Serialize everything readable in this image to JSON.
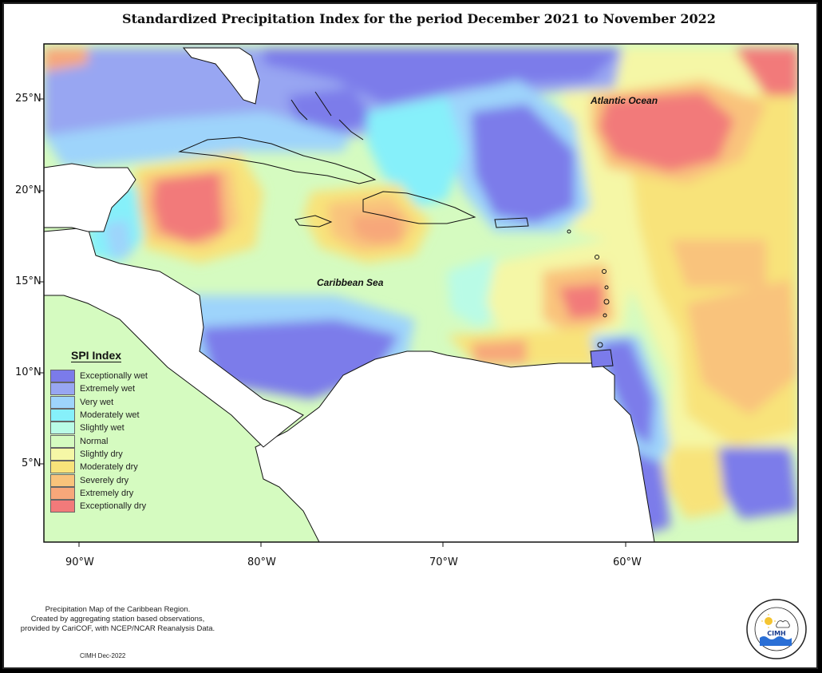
{
  "title": "Standardized Precipitation Index for the period December 2021 to November 2022",
  "map": {
    "region": "Caribbean",
    "lon_range": [
      -92,
      -50
    ],
    "lat_range": [
      1,
      28
    ],
    "x_ticks": [
      "90°W",
      "80°W",
      "70°W",
      "60°W"
    ],
    "y_ticks": [
      "25°N",
      "20°N",
      "15°N",
      "10°N",
      "5°N"
    ],
    "labels": {
      "atlantic": "Atlantic Ocean",
      "caribbean": "Caribbean Sea"
    }
  },
  "legend": {
    "title": "SPI Index",
    "items": [
      {
        "label": "Exceptionally wet",
        "color": "#7b7bea"
      },
      {
        "label": "Extremely wet",
        "color": "#98a6f2"
      },
      {
        "label": "Very wet",
        "color": "#9ed4fb"
      },
      {
        "label": "Moderately wet",
        "color": "#86f0fa"
      },
      {
        "label": "Slightly wet",
        "color": "#b9fbe6"
      },
      {
        "label": "Normal",
        "color": "#d5fbc0"
      },
      {
        "label": "Slightly dry",
        "color": "#f5f7a6"
      },
      {
        "label": "Moderately dry",
        "color": "#f8e37a"
      },
      {
        "label": "Severely dry",
        "color": "#f9c37b"
      },
      {
        "label": "Extremely dry",
        "color": "#f7a77a"
      },
      {
        "label": "Exceptionally dry",
        "color": "#f27a7a"
      }
    ]
  },
  "notes": {
    "line1": "Precipitation Map of the Caribbean Region.",
    "line2": "Created by aggregating station based observations,",
    "line3": "provided by CariCOF, with NCEP/NCAR Reanalysis Data."
  },
  "credit": "CIMH Dec-2022",
  "logo": {
    "text": "CIMH",
    "ring_text": "Caribbean Institute for Meteorology and Hydrology"
  }
}
